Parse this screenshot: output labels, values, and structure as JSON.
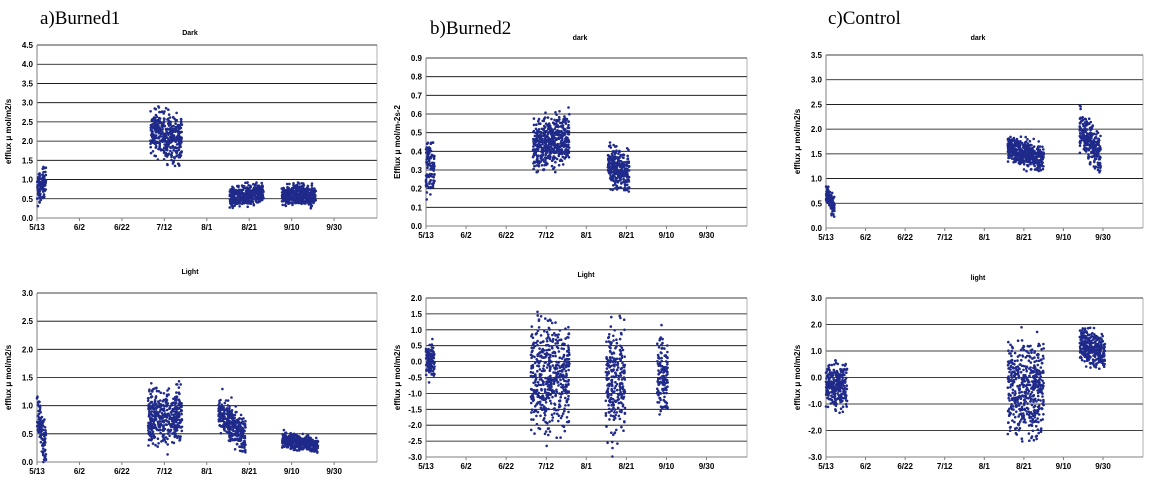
{
  "groups": [
    {
      "label": "a)Burned1"
    },
    {
      "label": "b)Burned2"
    },
    {
      "label": "c)Control"
    }
  ],
  "colors": {
    "points": "#1f2a8a",
    "grid": "#000000",
    "axis": "#7f7f7f"
  },
  "chart_data": [
    {
      "type": "scatter",
      "title": "Dark",
      "ylabel": "efflux μ mol/m2/s",
      "ylim": [
        0,
        4.5
      ],
      "yticks": [
        "0.0",
        "0.5",
        "1.0",
        "1.5",
        "2.0",
        "2.5",
        "3.0",
        "3.5",
        "4.0",
        "4.5"
      ],
      "xlim": [
        0,
        150
      ],
      "xticks": [
        "5/13",
        "6/2",
        "6/22",
        "7/12",
        "8/1",
        "8/21",
        "9/10",
        "9/30"
      ],
      "grid": "horizontal",
      "series": [
        {
          "x": [
            0,
            4
          ],
          "y": [
            0.7,
            1.0
          ],
          "spread": 0.35
        },
        {
          "x": [
            50,
            64
          ],
          "y": [
            2.3,
            2.0
          ],
          "spread": 0.55
        },
        {
          "x": [
            85,
            100
          ],
          "y": [
            0.5,
            0.65
          ],
          "spread": 0.25
        },
        {
          "x": [
            108,
            123
          ],
          "y": [
            0.6,
            0.6
          ],
          "spread": 0.25
        }
      ]
    },
    {
      "type": "scatter",
      "title": "dark",
      "ylabel": "Efflux μ mol/m-2s-2",
      "ylim": [
        0,
        0.9
      ],
      "yticks": [
        "0.0",
        "0.1",
        "0.2",
        "0.3",
        "0.4",
        "0.5",
        "0.6",
        "0.7",
        "0.8",
        "0.9"
      ],
      "xlim": [
        0,
        150
      ],
      "xticks": [
        "5/13",
        "6/2",
        "6/22",
        "7/12",
        "8/1",
        "8/21",
        "9/10",
        "9/30"
      ],
      "grid": "horizontal",
      "series": [
        {
          "x": [
            0,
            4
          ],
          "y": [
            0.32,
            0.32
          ],
          "spread": 0.15
        },
        {
          "x": [
            50,
            67
          ],
          "y": [
            0.42,
            0.48
          ],
          "spread": 0.12
        },
        {
          "x": [
            85,
            95
          ],
          "y": [
            0.33,
            0.28
          ],
          "spread": 0.1
        }
      ]
    },
    {
      "type": "scatter",
      "title": "dark",
      "ylabel": "efflux μ mol/m2/s",
      "ylim": [
        0,
        3.5
      ],
      "yticks": [
        "0.0",
        "0.5",
        "1.0",
        "1.5",
        "2.0",
        "2.5",
        "3.0",
        "3.5"
      ],
      "xlim": [
        0,
        150
      ],
      "xticks": [
        "5/13",
        "6/2",
        "6/22",
        "7/12",
        "8/1",
        "8/21",
        "9/10",
        "9/30"
      ],
      "grid": "horizontal",
      "series": [
        {
          "x": [
            0,
            4
          ],
          "y": [
            0.7,
            0.45
          ],
          "spread": 0.2
        },
        {
          "x": [
            86,
            103
          ],
          "y": [
            1.6,
            1.4
          ],
          "spread": 0.25
        },
        {
          "x": [
            120,
            130
          ],
          "y": [
            2.0,
            1.5
          ],
          "spread": 0.35
        }
      ]
    },
    {
      "type": "scatter",
      "title": "Light",
      "ylabel": "efflux μ mol/m2/s",
      "ylim": [
        0,
        3.0
      ],
      "yticks": [
        "0.0",
        "0.5",
        "1.0",
        "1.5",
        "2.0",
        "2.5",
        "3.0"
      ],
      "xlim": [
        0,
        150
      ],
      "xticks": [
        "5/13",
        "6/2",
        "6/22",
        "7/12",
        "8/1",
        "8/21",
        "9/10",
        "9/30"
      ],
      "grid": "horizontal",
      "series": [
        {
          "x": [
            0,
            4
          ],
          "y": [
            0.9,
            0.2
          ],
          "spread": 0.35
        },
        {
          "x": [
            49,
            64
          ],
          "y": [
            0.8,
            0.8
          ],
          "spread": 0.45
        },
        {
          "x": [
            80,
            92
          ],
          "y": [
            0.9,
            0.45
          ],
          "spread": 0.3
        },
        {
          "x": [
            108,
            124
          ],
          "y": [
            0.4,
            0.3
          ],
          "spread": 0.12
        }
      ]
    },
    {
      "type": "scatter",
      "title": "Light",
      "ylabel": "efflux μ mol/m2/s",
      "ylim": [
        -3.0,
        2.0
      ],
      "yticks": [
        "-3.0",
        "-2.5",
        "-2.0",
        "-1.5",
        "-1.0",
        "-0.5",
        "0.0",
        "0.5",
        "1.0",
        "1.5",
        "2.0"
      ],
      "xlim": [
        0,
        150
      ],
      "xticks": [
        "5/13",
        "6/2",
        "6/22",
        "7/12",
        "8/1",
        "8/21",
        "9/10",
        "9/30"
      ],
      "grid": "horizontal",
      "series": [
        {
          "x": [
            0,
            4
          ],
          "y": [
            0.0,
            0.0
          ],
          "spread": 0.5
        },
        {
          "x": [
            49,
            67
          ],
          "y": [
            -0.5,
            -0.5
          ],
          "spread": 1.5
        },
        {
          "x": [
            84,
            93
          ],
          "y": [
            -0.6,
            -0.6
          ],
          "spread": 1.6
        },
        {
          "x": [
            108,
            113
          ],
          "y": [
            -0.4,
            -0.4
          ],
          "spread": 1.1
        }
      ]
    },
    {
      "type": "scatter",
      "title": "light",
      "ylabel": "efflux μ mol/m2/s",
      "ylim": [
        -3.0,
        3.0
      ],
      "yticks": [
        "-3.0",
        "-2.0",
        "-1.0",
        "0.0",
        "1.0",
        "2.0",
        "3.0"
      ],
      "xlim": [
        0,
        150
      ],
      "xticks": [
        "5/13",
        "6/2",
        "6/22",
        "7/12",
        "8/1",
        "8/21",
        "9/10",
        "9/30"
      ],
      "grid": "horizontal",
      "series": [
        {
          "x": [
            0,
            10
          ],
          "y": [
            -0.3,
            -0.3
          ],
          "spread": 0.8
        },
        {
          "x": [
            86,
            103
          ],
          "y": [
            -0.4,
            -0.4
          ],
          "spread": 1.6
        },
        {
          "x": [
            120,
            132
          ],
          "y": [
            1.3,
            0.9
          ],
          "spread": 0.6
        }
      ]
    }
  ]
}
